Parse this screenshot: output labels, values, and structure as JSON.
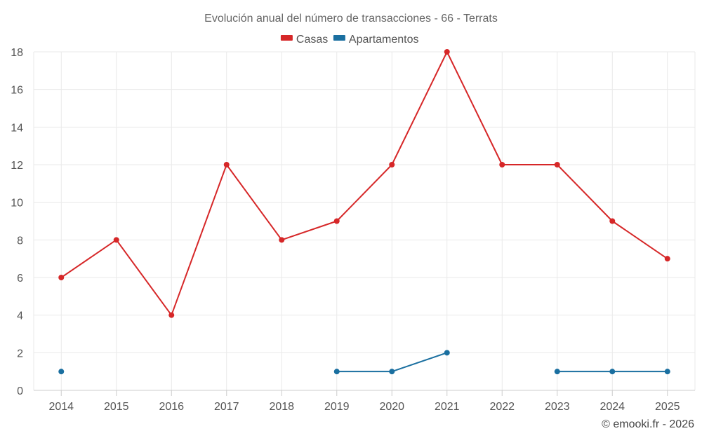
{
  "chart_data": {
    "type": "line",
    "title": "Evolución anual del número de transacciones - 66 - Terrats",
    "xlabel": "",
    "ylabel": "",
    "categories": [
      "2014",
      "2015",
      "2016",
      "2017",
      "2018",
      "2019",
      "2020",
      "2021",
      "2022",
      "2023",
      "2024",
      "2025"
    ],
    "ylim": [
      0,
      18
    ],
    "yticks": [
      0,
      2,
      4,
      6,
      8,
      10,
      12,
      14,
      16,
      18
    ],
    "grid": true,
    "legend": "top-center",
    "series": [
      {
        "name": "Casas",
        "color": "#d62728",
        "values": [
          6,
          8,
          4,
          12,
          8,
          9,
          12,
          18,
          12,
          12,
          9,
          7
        ]
      },
      {
        "name": "Apartamentos",
        "color": "#1a6fa0",
        "values": [
          1,
          null,
          null,
          null,
          null,
          1,
          1,
          2,
          null,
          1,
          1,
          1
        ]
      }
    ]
  },
  "credit": "© emooki.fr - 2026"
}
